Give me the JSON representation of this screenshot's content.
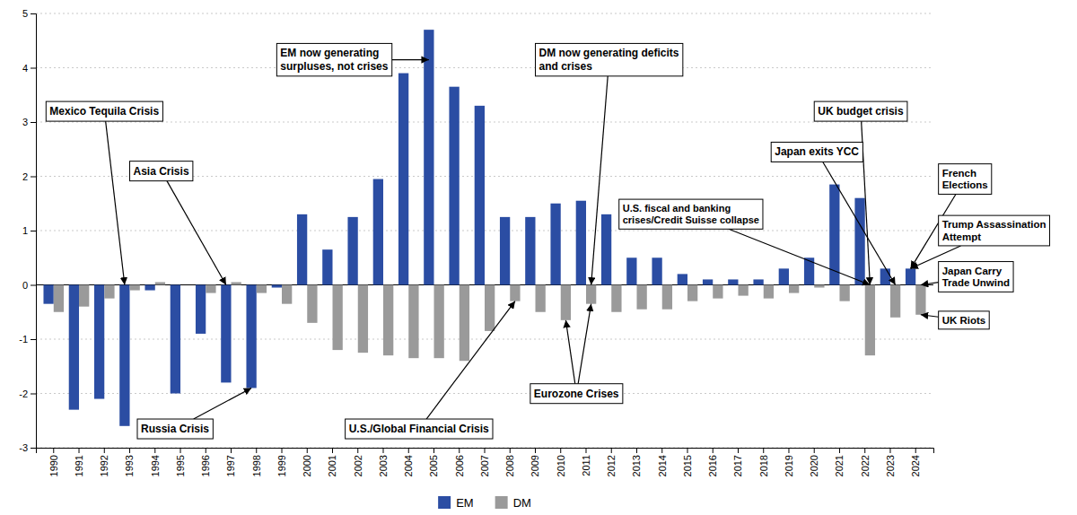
{
  "chart_data": {
    "type": "bar",
    "categories": [
      "1990",
      "1991",
      "1992",
      "1993",
      "1994",
      "1995",
      "1996",
      "1997",
      "1998",
      "1999",
      "2000",
      "2001",
      "2002",
      "2003",
      "2004",
      "2005",
      "2006",
      "2007",
      "2008",
      "2009",
      "2010",
      "2011",
      "2012",
      "2013",
      "2014",
      "2015",
      "2016",
      "2017",
      "2018",
      "2019",
      "2020",
      "2021",
      "2022",
      "2023",
      "2024"
    ],
    "series": [
      {
        "name": "EM",
        "color": "#2b4da3",
        "values": [
          -0.35,
          -2.3,
          -2.1,
          -2.6,
          -0.1,
          -2.0,
          -0.9,
          -1.8,
          -1.9,
          -0.05,
          1.3,
          0.65,
          1.25,
          1.95,
          3.9,
          4.7,
          3.65,
          3.3,
          1.25,
          1.25,
          1.5,
          1.55,
          1.3,
          0.5,
          0.5,
          0.2,
          0.1,
          0.1,
          0.1,
          0.3,
          0.5,
          1.85,
          1.6,
          0.3,
          0.3
        ]
      },
      {
        "name": "DM",
        "color": "#9a9a9a",
        "values": [
          -0.5,
          -0.4,
          -0.25,
          -0.1,
          0.05,
          0.0,
          -0.15,
          0.05,
          -0.15,
          -0.35,
          -0.7,
          -1.2,
          -1.25,
          -1.3,
          -1.35,
          -1.35,
          -1.4,
          -0.85,
          -0.3,
          -0.5,
          -0.65,
          -0.35,
          -0.5,
          -0.45,
          -0.45,
          -0.3,
          -0.25,
          -0.2,
          -0.25,
          -0.15,
          -0.05,
          -0.3,
          -1.3,
          -0.6,
          -0.55
        ]
      }
    ],
    "ylim": [
      -3,
      5
    ],
    "yticks": [
      -3,
      -2,
      -1,
      0,
      1,
      2,
      3,
      4,
      5
    ],
    "grid": true,
    "legend": "bottom",
    "annotations": [
      {
        "text": "Mexico Tequila Crisis",
        "targets": [
          {
            "category": "1993",
            "series": "EM"
          }
        ]
      },
      {
        "text": "Asia Crisis",
        "targets": [
          {
            "category": "1997",
            "series": "EM"
          }
        ]
      },
      {
        "text": "Russia Crisis",
        "targets": [
          {
            "category": "1998",
            "series": "EM"
          }
        ]
      },
      {
        "text": "EM now generating\nsurpluses, not crises",
        "targets": [
          {
            "category": "2005",
            "series": "EM"
          }
        ]
      },
      {
        "text": "U.S./Global Financial Crisis",
        "targets": [
          {
            "category": "2008",
            "series": "DM"
          }
        ]
      },
      {
        "text": "Eurozone Crises",
        "targets": [
          {
            "category": "2010",
            "series": "DM"
          },
          {
            "category": "2011",
            "series": "DM"
          }
        ]
      },
      {
        "text": "DM now generating deficits\nand crises",
        "targets": [
          {
            "category": "2011",
            "series": "DM"
          }
        ]
      },
      {
        "text": "U.S. fiscal and banking\ncrises/Credit Suisse collapse",
        "targets": [
          {
            "category": "2022",
            "series": "DM"
          }
        ]
      },
      {
        "text": "Japan exits YCC",
        "targets": [
          {
            "category": "2023",
            "series": "DM"
          }
        ]
      },
      {
        "text": "UK budget crisis",
        "targets": [
          {
            "category": "2022",
            "series": "DM"
          }
        ]
      },
      {
        "text": "French\nElections",
        "targets": [
          {
            "category": "2024",
            "series": "EM"
          }
        ]
      },
      {
        "text": "Trump Assassination\nAttempt",
        "targets": [
          {
            "category": "2024",
            "series": "EM"
          }
        ]
      },
      {
        "text": "Japan Carry\nTrade Unwind",
        "targets": [
          {
            "category": "2024",
            "series": "DM"
          }
        ]
      },
      {
        "text": "UK Riots",
        "targets": [
          {
            "category": "2024",
            "series": "DM"
          }
        ]
      }
    ]
  }
}
